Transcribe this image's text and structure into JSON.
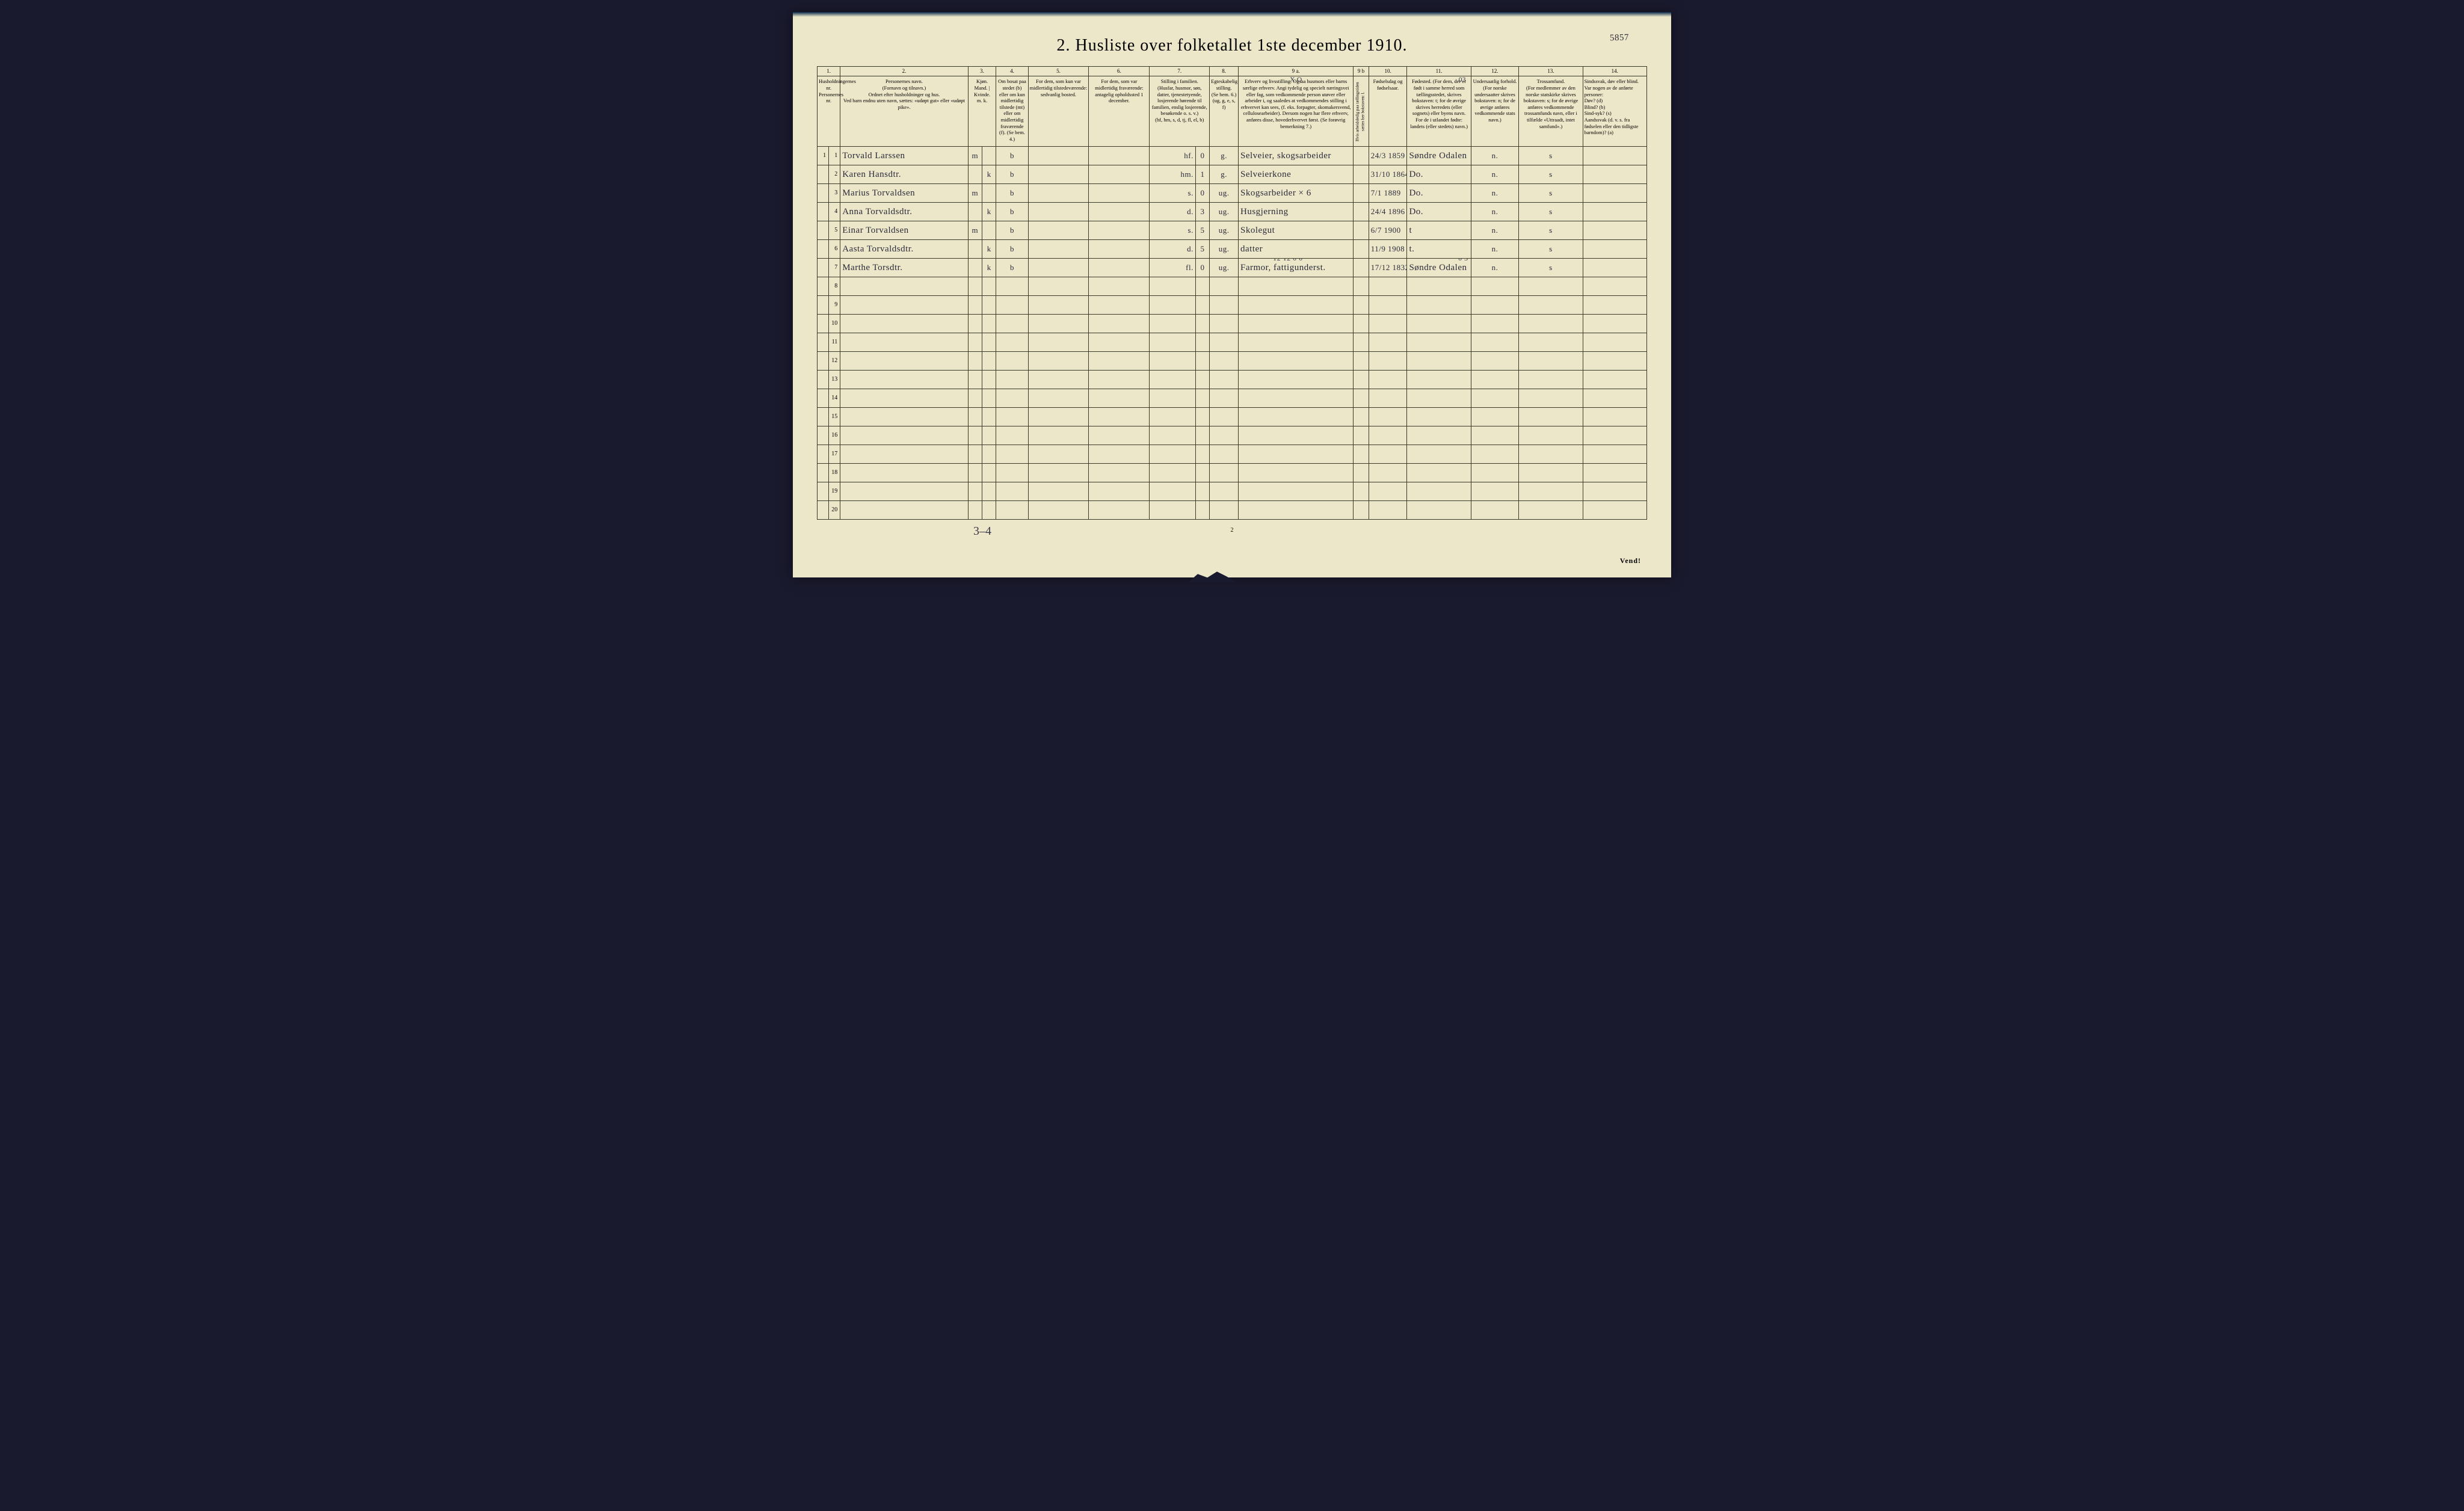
{
  "title": "2.  Husliste over folketallet 1ste december 1910.",
  "page_number_handwritten": "5857",
  "column_numbers": [
    "1.",
    "2.",
    "3.",
    "4.",
    "5.",
    "6.",
    "7.",
    "8.",
    "9 a.",
    "9 b",
    "10.",
    "11.",
    "12.",
    "13.",
    "14."
  ],
  "headers": {
    "c1": "Husholdningernes nr.\nPersonernes nr.",
    "c2": "Personernes navn.\n(Fornavn og tilnavn.)\nOrdnet efter husholdninger og hus.\nVed barn endnu uten navn, sættes: «udøpt gut» eller «udøpt pike».",
    "c3": "Kjøn.\nMand. | Kvinde.\nm.    k.",
    "c4": "Om bosat paa stedet (b) eller om kun midlertidig tilstede (mt) eller om midlertidig fraværende (f). (Se bem. 4.)",
    "c5": "For dem, som kun var midlertidig tilstedeværende:\nsedvanlig bosted.",
    "c6": "For dem, som var midlertidig fraværende:\nantagelig opholdssted 1 december.",
    "c7": "Stilling i familien.\n(Husfar, husmor, søn, datter, tjenestetyende, losjerende hørende til familien, enslig losjerende, besøkende o. s. v.)\n(hf, hm, s, d, tj, fl, el, b)",
    "c8": "Egteskabelig stilling.\n(Se bem. 6.)\n(ug, g, e, s, f)",
    "c9a": "Erhverv og livsstilling.\nOgsaa husmors eller barns særlige erhverv. Angi tydelig og specielt næringsvei eller fag, som vedkommende person utøver eller arbeider i, og saaledes at vedkommendes stilling i erhvervet kan sees, (f. eks. forpagter, skomakersvend, cellulosearbeider). Dersom nogen har flere erhverv, anføres disse, hovederhvervet først.\n(Se forøvrig bemerkning 7.)",
    "c9b": "Hvis arbeidsledig paa tællingstiden sættes her bokstaven: l.",
    "c10": "Fødselsdag og fødselsaar.",
    "c11": "Fødested.\n(For dem, der er født i samme herred som tællingsstedet, skrives bokstaven: t; for de øvrige skrives herredets (eller sognets) eller byens navn. For de i utlandet fødte: landets (eller stedets) navn.)",
    "c12": "Undersaatlig forhold.\n(For norske undersaatter skrives bokstaven: n; for de øvrige anføres vedkommende stats navn.)",
    "c13": "Trossamfund.\n(For medlemmer av den norske statskirke skrives bokstaven: s; for de øvrige anføres vedkommende trossamfunds navn, eller i tilfælde «Uttraadt, intet samfund».)",
    "c14": "Sindssvak, døv eller blind.\nVar nogen av de anførte personer:\nDøv?     (d)\nBlind?   (b)\nSind-syk? (s)\nAandssvak (d. v. s. fra fødselen eller den tidligste barndom)? (a)"
  },
  "annotations": {
    "over_c9a": "X O",
    "over_c11": "03",
    "over_c11_row7": "0 3",
    "over_c9a_row7": "12  12  0 0"
  },
  "rows": [
    {
      "hnr": "1",
      "pnr": "1",
      "name": "Torvald Larssen",
      "sex": "m",
      "bosat": "b",
      "c5": "",
      "c6": "",
      "fam": "hf.",
      "famnum": "0",
      "egt": "g.",
      "erhverv": "Selveier, skogsarbeider",
      "l": "",
      "fdato": "24/3 1859",
      "fsted": "Søndre Odalen",
      "und": "n.",
      "tros": "s",
      "sind": ""
    },
    {
      "hnr": "",
      "pnr": "2",
      "name": "Karen Hansdtr.",
      "sex": "k",
      "bosat": "b",
      "c5": "",
      "c6": "",
      "fam": "hm.",
      "famnum": "1",
      "egt": "g.",
      "erhverv": "Selveierkone",
      "l": "",
      "fdato": "31/10 1864",
      "fsted": "Do.",
      "und": "n.",
      "tros": "s",
      "sind": ""
    },
    {
      "hnr": "",
      "pnr": "3",
      "name": "Marius Torvaldsen",
      "sex": "m",
      "bosat": "b",
      "c5": "",
      "c6": "",
      "fam": "s.",
      "famnum": "0",
      "egt": "ug.",
      "erhverv": "Skogsarbeider × 6",
      "l": "",
      "fdato": "7/1 1889",
      "fsted": "Do.",
      "und": "n.",
      "tros": "s",
      "sind": ""
    },
    {
      "hnr": "",
      "pnr": "4",
      "name": "Anna Torvaldsdtr.",
      "sex": "k",
      "bosat": "b",
      "c5": "",
      "c6": "",
      "fam": "d.",
      "famnum": "3",
      "egt": "ug.",
      "erhverv": "Husgjerning",
      "l": "",
      "fdato": "24/4 1896",
      "fsted": "Do.",
      "und": "n.",
      "tros": "s",
      "sind": ""
    },
    {
      "hnr": "",
      "pnr": "5",
      "name": "Einar Torvaldsen",
      "sex": "m",
      "bosat": "b",
      "c5": "",
      "c6": "",
      "fam": "s.",
      "famnum": "5",
      "egt": "ug.",
      "erhverv": "Skolegut",
      "l": "",
      "fdato": "6/7 1900",
      "fsted": "t",
      "und": "n.",
      "tros": "s",
      "sind": ""
    },
    {
      "hnr": "",
      "pnr": "6",
      "name": "Aasta Torvaldsdtr.",
      "sex": "k",
      "bosat": "b",
      "c5": "",
      "c6": "",
      "fam": "d.",
      "famnum": "5",
      "egt": "ug.",
      "erhverv": "datter",
      "l": "",
      "fdato": "11/9 1908",
      "fsted": "t.",
      "und": "n.",
      "tros": "s",
      "sind": ""
    },
    {
      "hnr": "",
      "pnr": "7",
      "name": "Marthe Torsdtr.",
      "sex": "k",
      "bosat": "b",
      "c5": "",
      "c6": "",
      "fam": "fl.",
      "famnum": "0",
      "egt": "ug.",
      "erhverv": "Farmor, fattigunderst.",
      "l": "",
      "fdato": "17/12 1832",
      "fsted": "Søndre Odalen",
      "und": "n.",
      "tros": "s",
      "sind": ""
    }
  ],
  "empty_row_count": 13,
  "bottom_handwritten": "3–4",
  "bottom_page_num": "2",
  "vend": "Vend!",
  "col_widths": {
    "c1a": 18,
    "c1b": 18,
    "c2": 200,
    "c3a": 22,
    "c3b": 22,
    "c4": 50,
    "c5": 95,
    "c6": 95,
    "c7": 90,
    "c7b": 22,
    "c8": 45,
    "c9a": 180,
    "c9b": 24,
    "c10": 60,
    "c11": 100,
    "c12": 75,
    "c13": 100,
    "c14": 100
  },
  "colors": {
    "paper": "#ede7c9",
    "ink": "#2a2a3a",
    "border": "#3a3a2a",
    "background": "#1a1a2e"
  }
}
